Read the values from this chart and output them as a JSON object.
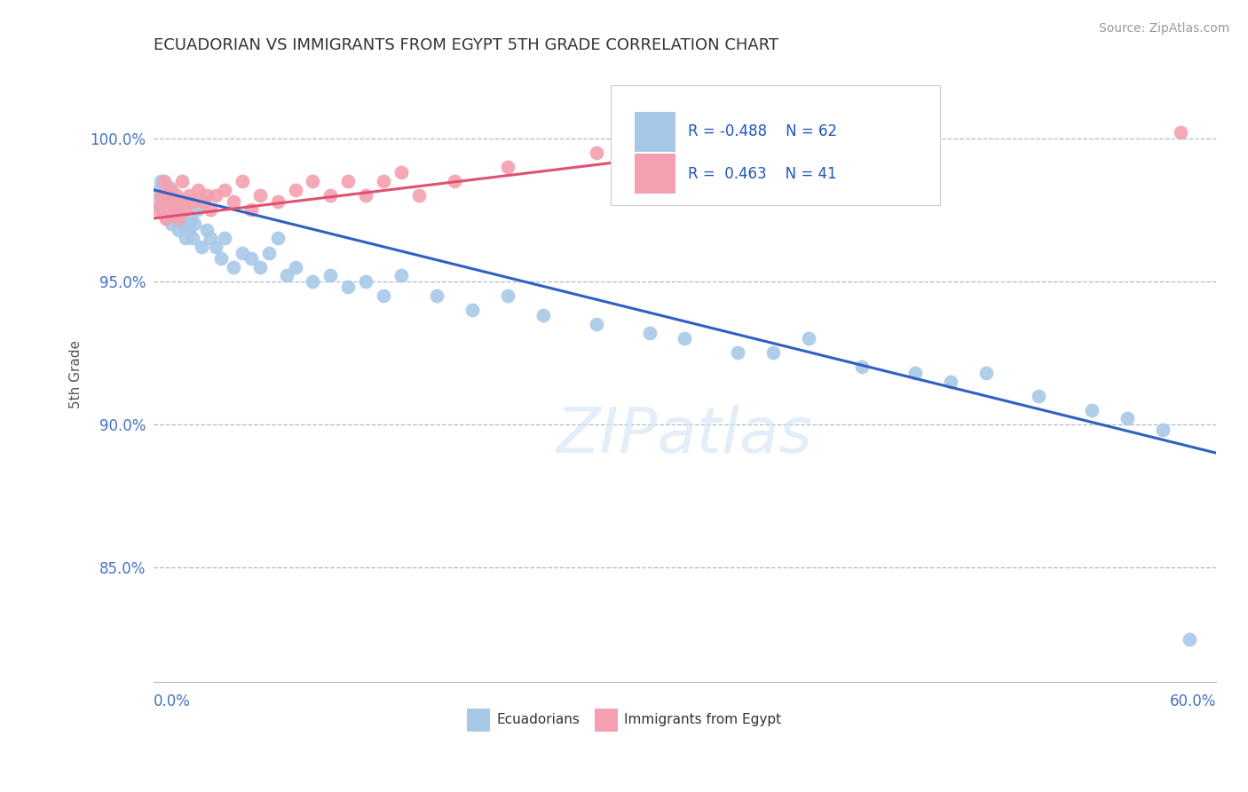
{
  "title": "ECUADORIAN VS IMMIGRANTS FROM EGYPT 5TH GRADE CORRELATION CHART",
  "source_text": "Source: ZipAtlas.com",
  "ylabel": "5th Grade",
  "legend_label1": "Ecuadorians",
  "legend_label2": "Immigrants from Egypt",
  "R1": -0.488,
  "N1": 62,
  "R2": 0.463,
  "N2": 41,
  "color_blue": "#A8C8E8",
  "color_pink": "#F4A0B0",
  "color_line_blue": "#3060C0",
  "color_line_pink": "#E05070",
  "xmin": 0.0,
  "xmax": 60.0,
  "ymin": 81.0,
  "ymax": 102.5,
  "yticks": [
    85.0,
    90.0,
    95.0,
    100.0
  ],
  "blue_scatter_x": [
    0.2,
    0.3,
    0.4,
    0.5,
    0.6,
    0.7,
    0.8,
    0.9,
    1.0,
    1.1,
    1.2,
    1.3,
    1.4,
    1.5,
    1.6,
    1.7,
    1.8,
    1.9,
    2.0,
    2.1,
    2.2,
    2.3,
    2.5,
    2.7,
    3.0,
    3.2,
    3.5,
    3.8,
    4.0,
    4.5,
    5.0,
    5.5,
    6.0,
    6.5,
    7.0,
    7.5,
    8.0,
    9.0,
    10.0,
    11.0,
    12.0,
    13.0,
    14.0,
    16.0,
    18.0,
    20.0,
    22.0,
    25.0,
    28.0,
    30.0,
    33.0,
    35.0,
    37.0,
    40.0,
    43.0,
    45.0,
    47.0,
    50.0,
    53.0,
    55.0,
    57.0,
    58.5
  ],
  "blue_scatter_y": [
    97.8,
    98.2,
    98.5,
    97.5,
    98.0,
    97.2,
    97.8,
    98.3,
    97.0,
    97.5,
    97.2,
    97.8,
    96.8,
    97.3,
    97.0,
    97.5,
    96.5,
    97.0,
    96.8,
    97.2,
    96.5,
    97.0,
    97.5,
    96.2,
    96.8,
    96.5,
    96.2,
    95.8,
    96.5,
    95.5,
    96.0,
    95.8,
    95.5,
    96.0,
    96.5,
    95.2,
    95.5,
    95.0,
    95.2,
    94.8,
    95.0,
    94.5,
    95.2,
    94.5,
    94.0,
    94.5,
    93.8,
    93.5,
    93.2,
    93.0,
    92.5,
    92.5,
    93.0,
    92.0,
    91.8,
    91.5,
    91.8,
    91.0,
    90.5,
    90.2,
    89.8,
    82.5
  ],
  "pink_scatter_x": [
    0.2,
    0.4,
    0.5,
    0.6,
    0.7,
    0.8,
    0.9,
    1.0,
    1.1,
    1.2,
    1.3,
    1.4,
    1.5,
    1.6,
    1.8,
    2.0,
    2.2,
    2.5,
    2.8,
    3.0,
    3.2,
    3.5,
    4.0,
    4.5,
    5.0,
    5.5,
    6.0,
    7.0,
    8.0,
    9.0,
    10.0,
    11.0,
    12.0,
    13.0,
    14.0,
    15.0,
    17.0,
    20.0,
    25.0,
    30.0,
    58.0
  ],
  "pink_scatter_y": [
    97.5,
    98.0,
    97.8,
    98.5,
    97.2,
    98.0,
    97.5,
    98.2,
    97.8,
    97.5,
    98.0,
    97.2,
    97.8,
    98.5,
    97.5,
    98.0,
    97.8,
    98.2,
    97.8,
    98.0,
    97.5,
    98.0,
    98.2,
    97.8,
    98.5,
    97.5,
    98.0,
    97.8,
    98.2,
    98.5,
    98.0,
    98.5,
    98.0,
    98.5,
    98.8,
    98.0,
    98.5,
    99.0,
    99.5,
    99.5,
    100.2
  ],
  "blue_line_x0": 0.0,
  "blue_line_x1": 60.0,
  "blue_line_y0": 98.2,
  "blue_line_y1": 89.0,
  "pink_line_x0": 0.0,
  "pink_line_x1": 40.0,
  "pink_line_y0": 97.2,
  "pink_line_y1": 100.2
}
